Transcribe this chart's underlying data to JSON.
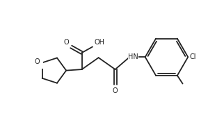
{
  "bg_color": "#ffffff",
  "line_color": "#222222",
  "line_width": 1.3,
  "font_size": 7.0,
  "figsize": [
    3.22,
    1.86
  ],
  "dpi": 100,
  "xlim": [
    0,
    10
  ],
  "ylim": [
    0.5,
    6.5
  ]
}
